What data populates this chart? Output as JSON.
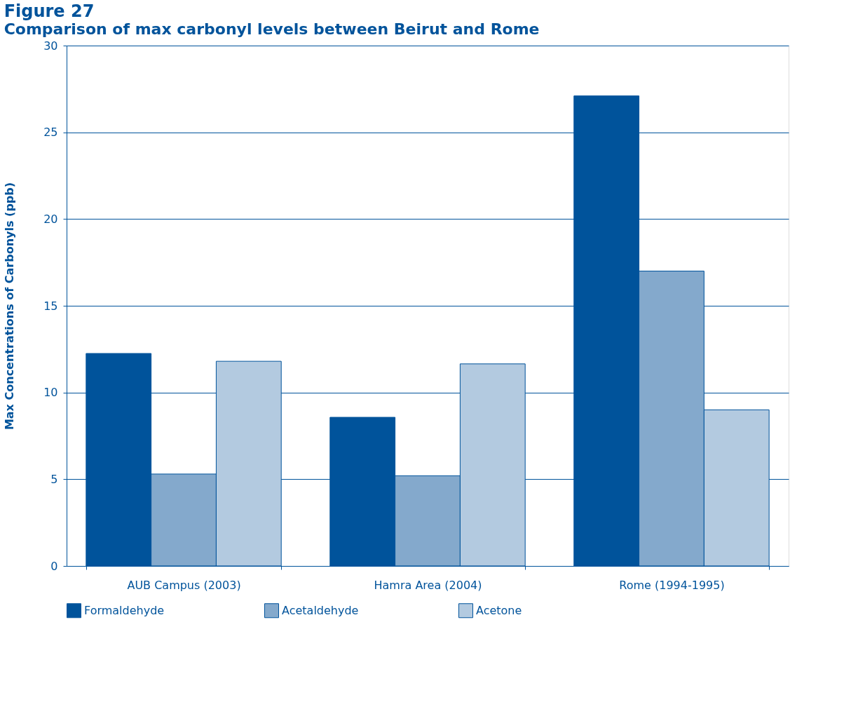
{
  "chart_data": {
    "type": "bar",
    "title": "Figure 27",
    "subtitle": "Comparison of max carbonyl levels between Beirut and Rome",
    "ylabel": "Max Concentrations of Carbonyls (ppb)",
    "categories": [
      "AUB Campus (2003)",
      "Hamra Area (2004)",
      "Rome (1994-1995)"
    ],
    "series": [
      {
        "name": "Formaldehyde",
        "color": "#00539b",
        "values": [
          12.25,
          8.57,
          27.1
        ]
      },
      {
        "name": "Acetaldehyde",
        "color": "#84a9cc",
        "values": [
          5.3,
          5.2,
          17.0
        ]
      },
      {
        "name": "Acetone",
        "color": "#b3cae0",
        "values": [
          11.8,
          11.65,
          9.0
        ]
      }
    ],
    "ylim": [
      0,
      30
    ],
    "yticks": [
      0,
      5,
      10,
      15,
      20,
      25,
      30
    ],
    "grid": "y",
    "legend": "bottom"
  }
}
